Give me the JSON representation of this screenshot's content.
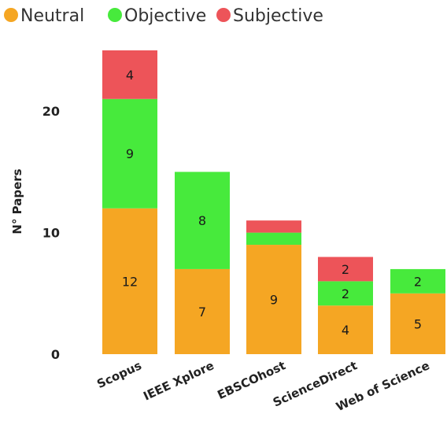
{
  "chart_data": {
    "type": "bar",
    "stacked": true,
    "title": "",
    "xlabel": "",
    "ylabel": "N° Papers",
    "categories": [
      "Scopus",
      "IEEE Xplore",
      "EBSCOhost",
      "ScienceDirect",
      "Web of Science"
    ],
    "series": [
      {
        "name": "Neutral",
        "color": "#f5a623",
        "values": [
          12,
          7,
          9,
          4,
          5
        ]
      },
      {
        "name": "Objective",
        "color": "#47ea3c",
        "values": [
          9,
          8,
          1,
          2,
          2
        ]
      },
      {
        "name": "Subjective",
        "color": "#ed5459",
        "values": [
          4,
          0,
          1,
          2,
          0
        ]
      }
    ],
    "data_labels": [
      [
        "12",
        "7",
        "9",
        "4",
        "5"
      ],
      [
        "9",
        "8",
        "",
        "2",
        "2"
      ],
      [
        "4",
        "",
        "",
        "2",
        ""
      ]
    ],
    "yticks": [
      0,
      10,
      20
    ],
    "ylim": [
      0,
      25
    ],
    "grid": false,
    "legend_position": "top-left"
  }
}
